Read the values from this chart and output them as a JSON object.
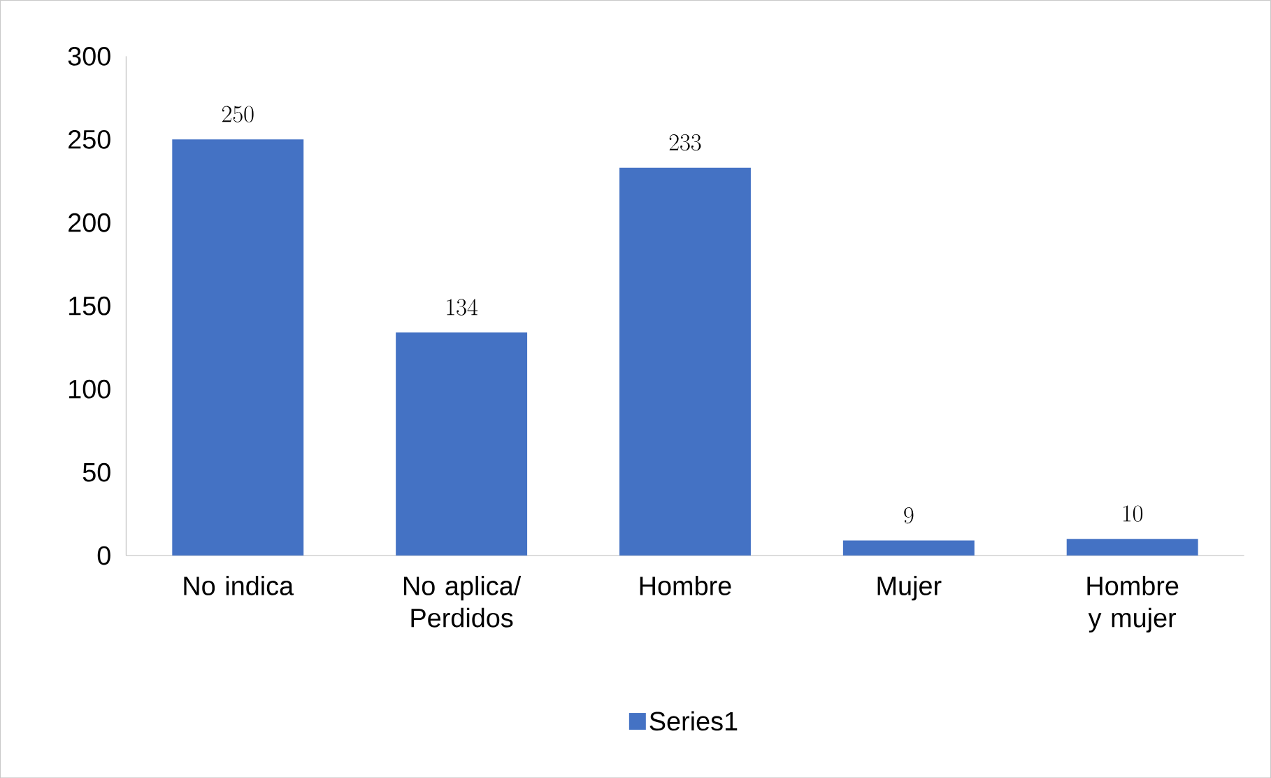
{
  "chart_data": {
    "type": "bar",
    "categories": [
      "No indica",
      "No aplica/ Perdidos",
      "Hombre",
      "Mujer",
      "Hombre y mujer"
    ],
    "series": [
      {
        "name": "Series1",
        "color": "#4472c4",
        "values": [
          250,
          134,
          233,
          9,
          10
        ]
      }
    ],
    "ylim": [
      0,
      300
    ],
    "yticks": [
      0,
      50,
      100,
      150,
      200,
      250,
      300
    ],
    "data_labels": true,
    "legend": "bottom",
    "grid": false
  }
}
